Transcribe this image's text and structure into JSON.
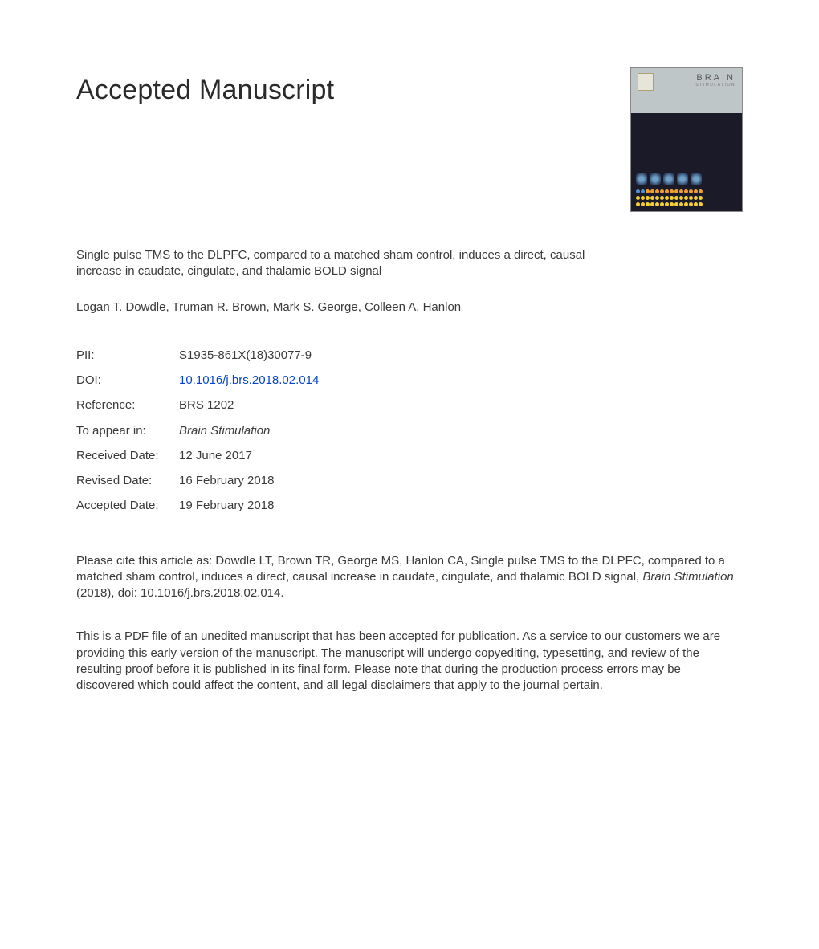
{
  "heading": "Accepted Manuscript",
  "journal_cover": {
    "title_line1": "BRAIN",
    "title_line2": "STIMULATION"
  },
  "article": {
    "title": "Single pulse TMS to the DLPFC, compared to a matched sham control, induces a direct, causal increase in caudate, cingulate, and thalamic BOLD signal",
    "authors": "Logan T. Dowdle, Truman R. Brown, Mark S. George, Colleen A. Hanlon"
  },
  "meta": {
    "pii_label": "PII:",
    "pii_value": "S1935-861X(18)30077-9",
    "doi_label": "DOI:",
    "doi_value": "10.1016/j.brs.2018.02.014",
    "ref_label": "Reference:",
    "ref_value": "BRS 1202",
    "appear_label": "To appear in:",
    "appear_value": "Brain Stimulation",
    "received_label": "Received Date:",
    "received_value": "12 June 2017",
    "revised_label": "Revised Date:",
    "revised_value": "16 February 2018",
    "accepted_label": "Accepted Date:",
    "accepted_value": "19 February 2018"
  },
  "citation": {
    "prefix": "Please cite this article as: Dowdle LT, Brown TR, George MS, Hanlon CA, Single pulse TMS to the DLPFC, compared to a matched sham control, induces a direct, causal increase in caudate, cingulate, and thalamic BOLD signal, ",
    "journal": "Brain Stimulation",
    "suffix": " (2018), doi: 10.1016/j.brs.2018.02.014."
  },
  "disclaimer": "This is a PDF file of an unedited manuscript that has been accepted for publication. As a service to our customers we are providing this early version of the manuscript. The manuscript will undergo copyediting, typesetting, and review of the resulting proof before it is published in its final form. Please note that during the production process errors may be discovered which could affect the content, and all legal disclaimers that apply to the journal pertain.",
  "colors": {
    "text": "#3a3a3a",
    "link": "#0645cc",
    "cover_bg": "#bfc6c7",
    "cover_dark": "#1a1a28"
  }
}
